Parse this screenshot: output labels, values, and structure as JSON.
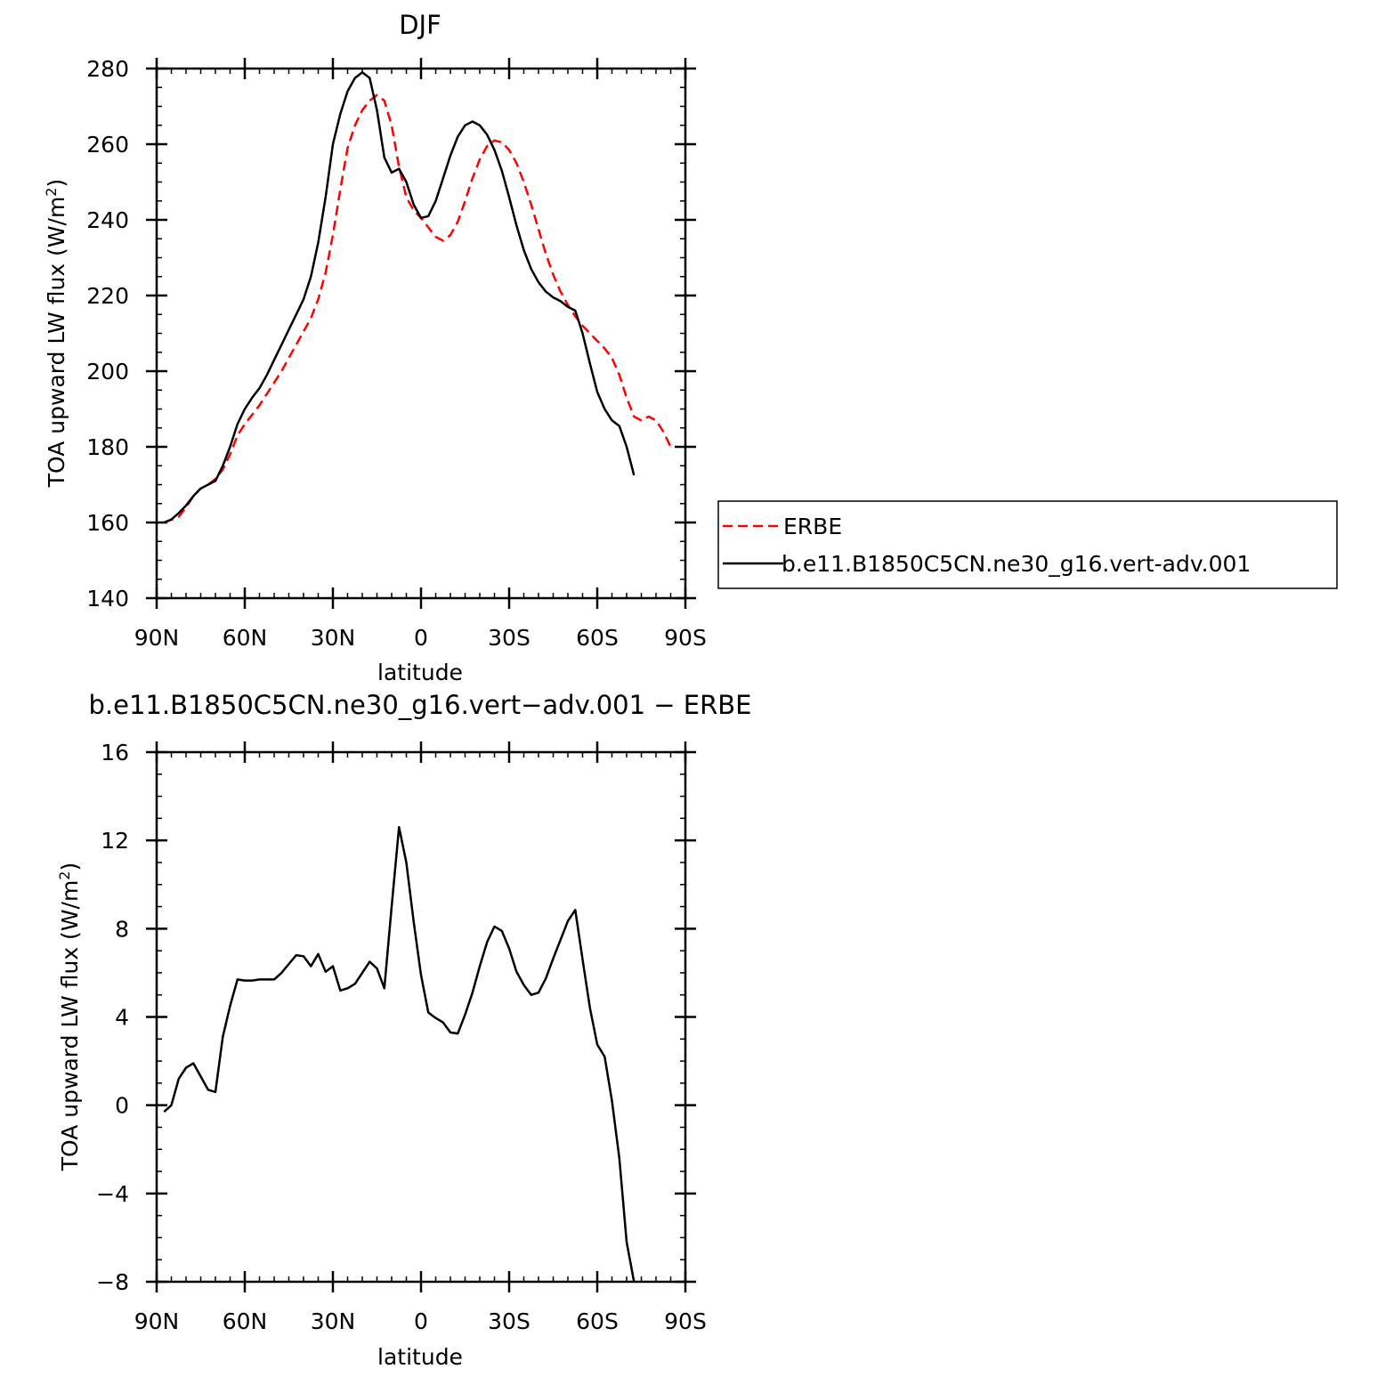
{
  "chart_data": [
    {
      "type": "line",
      "title": "DJF",
      "xlabel": "latitude",
      "ylabel": "TOA upward LW flux (W/m",
      "ylabel_sup": "2",
      "ylabel_close": ")",
      "xlim": [
        90,
        -90
      ],
      "ylim": [
        140,
        280
      ],
      "x_ticks": [
        90,
        60,
        30,
        0,
        -30,
        -60,
        -90
      ],
      "x_tick_labels": [
        "90N",
        "60N",
        "30N",
        "0",
        "30S",
        "60S",
        "90S"
      ],
      "y_ticks": [
        140,
        160,
        180,
        200,
        220,
        240,
        260,
        280
      ],
      "y_tick_labels": [
        "140",
        "160",
        "180",
        "200",
        "220",
        "240",
        "260",
        "280"
      ],
      "legend_position": "right",
      "series": [
        {
          "name": "ERBE",
          "color": "#ff0000",
          "dashed": true,
          "points": [
            [
              87.5,
              160
            ],
            [
              85,
              160.7
            ],
            [
              82.5,
              161.5
            ],
            [
              80,
              164
            ],
            [
              77.5,
              167
            ],
            [
              75,
              169
            ],
            [
              72.5,
              170
            ],
            [
              70,
              171.5
            ],
            [
              67.5,
              174
            ],
            [
              65,
              178
            ],
            [
              62.5,
              183
            ],
            [
              60,
              186
            ],
            [
              57.5,
              188.5
            ],
            [
              55,
              191
            ],
            [
              52.5,
              194
            ],
            [
              50,
              197
            ],
            [
              47.5,
              200
            ],
            [
              45,
              203.5
            ],
            [
              42.5,
              207
            ],
            [
              40,
              210.5
            ],
            [
              37.5,
              214
            ],
            [
              35,
              219
            ],
            [
              32.5,
              226
            ],
            [
              30,
              236
            ],
            [
              27.5,
              248
            ],
            [
              25,
              259
            ],
            [
              22.5,
              265
            ],
            [
              20,
              269
            ],
            [
              17.5,
              271.5
            ],
            [
              15,
              273
            ],
            [
              12.5,
              271.5
            ],
            [
              10,
              265
            ],
            [
              7.5,
              254
            ],
            [
              5,
              246
            ],
            [
              2.5,
              242.5
            ],
            [
              0,
              240.5
            ],
            [
              -2.5,
              238
            ],
            [
              -5,
              235.5
            ],
            [
              -7.5,
              234.5
            ],
            [
              -10,
              236
            ],
            [
              -12.5,
              239.5
            ],
            [
              -15,
              245
            ],
            [
              -17.5,
              251
            ],
            [
              -20,
              256
            ],
            [
              -22.5,
              259.5
            ],
            [
              -25,
              261
            ],
            [
              -27.5,
              260.5
            ],
            [
              -30,
              258.5
            ],
            [
              -32.5,
              255
            ],
            [
              -35,
              250
            ],
            [
              -37.5,
              244
            ],
            [
              -40,
              237.5
            ],
            [
              -42.5,
              231
            ],
            [
              -45,
              225.5
            ],
            [
              -47.5,
              221
            ],
            [
              -50,
              217.5
            ],
            [
              -52.5,
              214.5
            ],
            [
              -55,
              212
            ],
            [
              -57.5,
              210
            ],
            [
              -60,
              208
            ],
            [
              -62.5,
              206
            ],
            [
              -65,
              203.5
            ],
            [
              -67.5,
              199
            ],
            [
              -70,
              193
            ],
            [
              -72.5,
              188
            ],
            [
              -75,
              187
            ],
            [
              -77.5,
              188
            ],
            [
              -80,
              187
            ],
            [
              -82.5,
              184
            ],
            [
              -85,
              180
            ]
          ]
        },
        {
          "name": "b.e11.B1850C5CN.ne30_g16.vert-adv.001",
          "color": "#000000",
          "dashed": false,
          "points": [
            [
              87.5,
              160
            ],
            [
              85,
              160.8
            ],
            [
              82.5,
              162.5
            ],
            [
              80,
              164.5
            ],
            [
              77.5,
              167
            ],
            [
              75,
              169
            ],
            [
              72.5,
              170
            ],
            [
              70,
              171
            ],
            [
              67.5,
              175
            ],
            [
              65,
              180
            ],
            [
              62.5,
              186
            ],
            [
              60,
              190
            ],
            [
              57.5,
              193
            ],
            [
              55,
              195.5
            ],
            [
              52.5,
              199
            ],
            [
              50,
              203
            ],
            [
              47.5,
              207
            ],
            [
              45,
              211
            ],
            [
              42.5,
              215
            ],
            [
              40,
              219
            ],
            [
              37.5,
              225
            ],
            [
              35,
              234
            ],
            [
              32.5,
              246
            ],
            [
              30,
              260
            ],
            [
              27.5,
              268
            ],
            [
              25,
              274
            ],
            [
              22.5,
              277.5
            ],
            [
              20,
              279
            ],
            [
              17.5,
              277.5
            ],
            [
              15,
              269
            ],
            [
              12.5,
              256.5
            ],
            [
              10,
              252.5
            ],
            [
              7.5,
              253.5
            ],
            [
              5,
              250
            ],
            [
              2.5,
              244
            ],
            [
              0,
              240.5
            ],
            [
              -2.5,
              241
            ],
            [
              -5,
              245
            ],
            [
              -7.5,
              251
            ],
            [
              -10,
              257
            ],
            [
              -12.5,
              262
            ],
            [
              -15,
              265
            ],
            [
              -17.5,
              266
            ],
            [
              -20,
              265
            ],
            [
              -22.5,
              262.5
            ],
            [
              -25,
              258.5
            ],
            [
              -27.5,
              253
            ],
            [
              -30,
              246
            ],
            [
              -32.5,
              238.5
            ],
            [
              -35,
              232
            ],
            [
              -37.5,
              227
            ],
            [
              -40,
              223.5
            ],
            [
              -42.5,
              221
            ],
            [
              -45,
              219.5
            ],
            [
              -47.5,
              218.5
            ],
            [
              -50,
              217
            ],
            [
              -52.5,
              216
            ],
            [
              -55,
              210
            ],
            [
              -57.5,
              202
            ],
            [
              -60,
              194.5
            ],
            [
              -62.5,
              190
            ],
            [
              -65,
              187
            ],
            [
              -67.5,
              185.5
            ],
            [
              -70,
              180
            ],
            [
              -72.5,
              172.5
            ]
          ]
        }
      ]
    },
    {
      "type": "line",
      "title": "b.e11.B1850C5CN.ne30_g16.vert−adv.001  −  ERBE",
      "xlabel": "latitude",
      "ylabel": "TOA upward LW flux (W/m",
      "ylabel_sup": "2",
      "ylabel_close": ")",
      "xlim": [
        90,
        -90
      ],
      "ylim": [
        -8,
        16
      ],
      "x_ticks": [
        90,
        60,
        30,
        0,
        -30,
        -60,
        -90
      ],
      "x_tick_labels": [
        "90N",
        "60N",
        "30N",
        "0",
        "30S",
        "60S",
        "90S"
      ],
      "y_ticks": [
        -8,
        -4,
        0,
        4,
        8,
        12,
        16
      ],
      "y_tick_labels": [
        "−8",
        "−4",
        "0",
        "4",
        "8",
        "12",
        "16"
      ],
      "series": [
        {
          "color": "#000000",
          "dashed": false,
          "points": [
            [
              87.5,
              -0.3
            ],
            [
              85,
              0
            ],
            [
              82.5,
              1.2
            ],
            [
              80,
              1.7
            ],
            [
              77.5,
              1.9
            ],
            [
              75,
              1.3
            ],
            [
              72.5,
              0.7
            ],
            [
              70,
              0.6
            ],
            [
              67.5,
              3.1
            ],
            [
              65,
              4.5
            ],
            [
              62.5,
              5.7
            ],
            [
              60,
              5.65
            ],
            [
              57.5,
              5.65
            ],
            [
              55,
              5.7
            ],
            [
              52.5,
              5.7
            ],
            [
              50,
              5.7
            ],
            [
              47.5,
              6
            ],
            [
              45,
              6.4
            ],
            [
              42.5,
              6.8
            ],
            [
              40,
              6.75
            ],
            [
              37.5,
              6.3
            ],
            [
              35,
              6.85
            ],
            [
              32.5,
              6.05
            ],
            [
              30,
              6.3
            ],
            [
              27.5,
              5.2
            ],
            [
              25,
              5.3
            ],
            [
              22.5,
              5.5
            ],
            [
              20,
              6
            ],
            [
              17.5,
              6.5
            ],
            [
              15,
              6.2
            ],
            [
              12.5,
              5.3
            ],
            [
              10,
              9
            ],
            [
              7.5,
              12.6
            ],
            [
              5,
              11
            ],
            [
              2.5,
              8.3
            ],
            [
              0,
              5.9
            ],
            [
              -2.5,
              4.2
            ],
            [
              -5,
              3.95
            ],
            [
              -7.5,
              3.75
            ],
            [
              -10,
              3.3
            ],
            [
              -12.5,
              3.25
            ],
            [
              -15,
              4.1
            ],
            [
              -17.5,
              5.1
            ],
            [
              -20,
              6.3
            ],
            [
              -22.5,
              7.4
            ],
            [
              -25,
              8.1
            ],
            [
              -27.5,
              7.9
            ],
            [
              -30,
              7.1
            ],
            [
              -32.5,
              6.05
            ],
            [
              -35,
              5.45
            ],
            [
              -37.5,
              5
            ],
            [
              -40,
              5.1
            ],
            [
              -42.5,
              5.75
            ],
            [
              -45,
              6.65
            ],
            [
              -47.5,
              7.5
            ],
            [
              -50,
              8.35
            ],
            [
              -52.5,
              8.85
            ],
            [
              -55,
              6.6
            ],
            [
              -57.5,
              4.4
            ],
            [
              -60,
              2.75
            ],
            [
              -62.5,
              2.2
            ],
            [
              -65,
              0.2
            ],
            [
              -67.5,
              -2.4
            ],
            [
              -70,
              -6.2
            ],
            [
              -72.5,
              -8
            ]
          ]
        }
      ]
    }
  ]
}
